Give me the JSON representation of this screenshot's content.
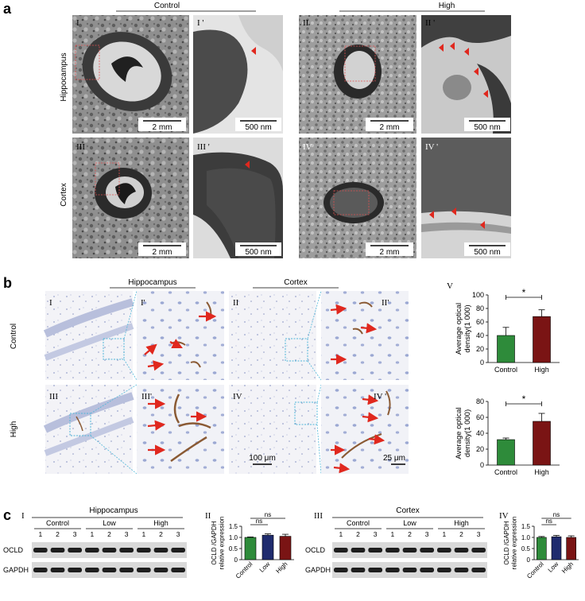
{
  "panel_letters": {
    "a": "a",
    "b": "b",
    "c": "c"
  },
  "section_a": {
    "group_control": "Control",
    "group_high": "High",
    "row_hippocampus": "Hippocampus",
    "row_cortex": "Cortex",
    "tiles": [
      {
        "label": "I",
        "scale": "2 mm"
      },
      {
        "label": "I '",
        "scale": "500 nm"
      },
      {
        "label": "II",
        "scale": "2 mm"
      },
      {
        "label": "II '",
        "scale": "500 nm"
      },
      {
        "label": "III",
        "scale": "2 mm"
      },
      {
        "label": "III '",
        "scale": "500 nm"
      },
      {
        "label": "IV",
        "scale": "2 mm"
      },
      {
        "label": "IV '",
        "scale": "500 nm"
      }
    ]
  },
  "section_b": {
    "group_hippocampus": "Hippocampus",
    "group_cortex": "Cortex",
    "row_control": "Control",
    "row_high": "High",
    "tiles": [
      {
        "label": "I"
      },
      {
        "label": "I'"
      },
      {
        "label": "II"
      },
      {
        "label": "II'"
      },
      {
        "label": "III"
      },
      {
        "label": "III'"
      },
      {
        "label": "IV"
      },
      {
        "label": "IV '"
      }
    ],
    "scale_100": "100 μm",
    "scale_25": "25 μm",
    "chart_label": "V"
  },
  "section_c": {
    "hipp_label": "I",
    "hipp_title": "Hippocampus",
    "cortex_label": "III",
    "cortex_title": "Cortex",
    "chart2_label": "II",
    "chart4_label": "IV",
    "groups": [
      "Control",
      "Low",
      "High"
    ],
    "lanes": [
      "1",
      "2",
      "3",
      "1",
      "2",
      "3",
      "1",
      "2",
      "3"
    ],
    "bands": [
      "OCLD",
      "GAPDH"
    ]
  },
  "colors": {
    "control": "#2e8b3a",
    "low": "#1f2b6e",
    "high": "#7a1414",
    "dashed_box": "#4fb6d8",
    "arrow": "#e0281e"
  },
  "chart_data": [
    {
      "type": "bar",
      "categories": [
        "Control",
        "High"
      ],
      "values": [
        40,
        68
      ],
      "errors": [
        12,
        10
      ],
      "ylabel": "Average optical density(1 000)",
      "ylim": [
        0,
        100
      ],
      "yticks": [
        "0",
        "20",
        "40",
        "60",
        "80",
        "100"
      ],
      "significance": "*"
    },
    {
      "type": "bar",
      "categories": [
        "Control",
        "High"
      ],
      "values": [
        32,
        55
      ],
      "errors": [
        2,
        10
      ],
      "ylabel": "Average optical density(1 000)",
      "ylim": [
        0,
        80
      ],
      "yticks": [
        "0",
        "20",
        "40",
        "60",
        "80"
      ],
      "significance": "*"
    },
    {
      "type": "bar",
      "categories": [
        "Control",
        "Low",
        "High"
      ],
      "values": [
        1.0,
        1.1,
        1.05
      ],
      "errors": [
        0.02,
        0.06,
        0.09
      ],
      "ylabel": "OCLD /GAPDH relative expression",
      "ylim": [
        0,
        1.5
      ],
      "yticks": [
        "0",
        "0.5",
        "1.0",
        "1.5"
      ],
      "significance": [
        "ns",
        "ns"
      ]
    },
    {
      "type": "bar",
      "categories": [
        "Control",
        "Low",
        "High"
      ],
      "values": [
        1.0,
        1.03,
        1.0
      ],
      "errors": [
        0.04,
        0.06,
        0.07
      ],
      "ylabel": "OCLD /GAPDH relative expression",
      "ylim": [
        0,
        1.5
      ],
      "yticks": [
        "0",
        "0.5",
        "1.0",
        "1.5"
      ],
      "significance": [
        "ns",
        "ns"
      ]
    }
  ]
}
